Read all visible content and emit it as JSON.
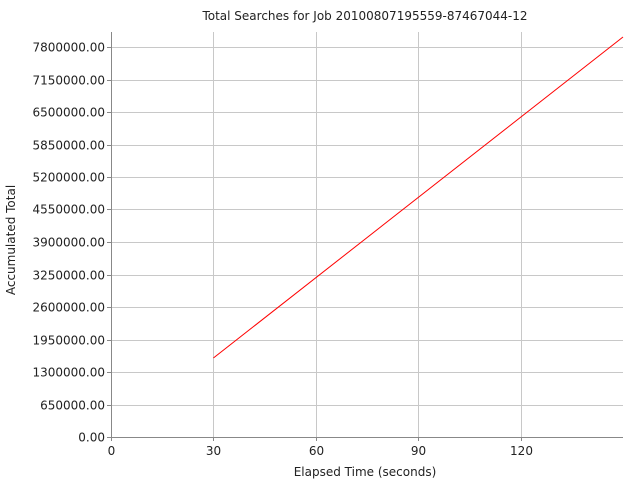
{
  "chart_data": {
    "type": "line",
    "title": "Total Searches for Job 20100807195559-87467044-12",
    "xlabel": "Elapsed Time (seconds)",
    "ylabel": "Accumulated Total",
    "xlim": [
      0,
      150
    ],
    "ylim": [
      0,
      8100000
    ],
    "x_ticks": [
      0,
      30,
      60,
      90,
      120
    ],
    "x_tick_labels": [
      "0",
      "30",
      "60",
      "90",
      "120"
    ],
    "y_ticks": [
      0,
      650000,
      1300000,
      1950000,
      2600000,
      3250000,
      3900000,
      4550000,
      5200000,
      5850000,
      6500000,
      7150000,
      7800000
    ],
    "y_tick_labels": [
      "0.00",
      "650000.00",
      "1300000.00",
      "1950000.00",
      "2600000.00",
      "3250000.00",
      "3900000.00",
      "4550000.00",
      "5200000.00",
      "5850000.00",
      "6500000.00",
      "7150000.00",
      "7800000.00"
    ],
    "grid": true,
    "series": [
      {
        "color": "#ff0000",
        "x": [
          30,
          150
        ],
        "y": [
          1580000,
          8000000
        ]
      }
    ]
  }
}
